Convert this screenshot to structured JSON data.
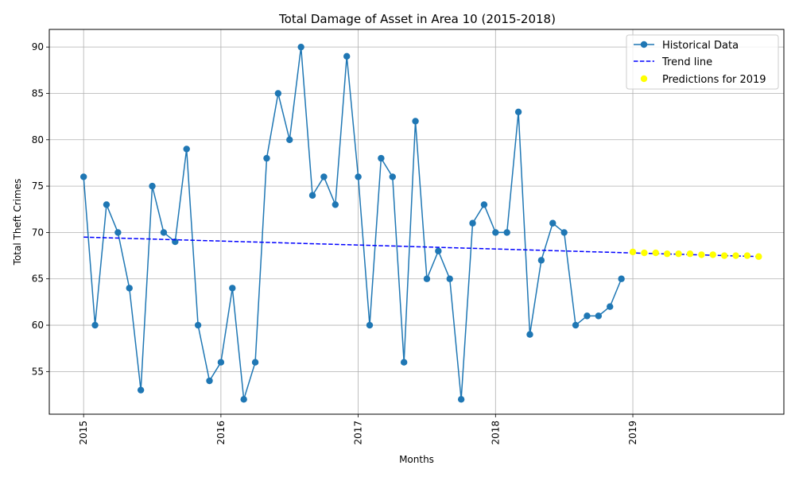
{
  "chart_data": {
    "type": "line",
    "title": "Total Damage of Asset in Area 10 (2015-2018)",
    "xlabel": "Months",
    "ylabel": "Total Theft Crimes",
    "xlim": [
      2014.75,
      2020.1
    ],
    "ylim": [
      50.4,
      91.9
    ],
    "xticks": [
      2015,
      2016,
      2017,
      2018,
      2019
    ],
    "yticks": [
      55,
      60,
      65,
      70,
      75,
      80,
      85,
      90
    ],
    "grid": true,
    "legend_position": "top-right",
    "colors": {
      "historical": "#1f77b4",
      "trend": "#0000ff",
      "prediction": "#ffff00"
    },
    "series": [
      {
        "name": "Historical Data",
        "style": "line-marker",
        "x": [
          "2015-01",
          "2015-02",
          "2015-03",
          "2015-04",
          "2015-05",
          "2015-06",
          "2015-07",
          "2015-08",
          "2015-09",
          "2015-10",
          "2015-11",
          "2015-12",
          "2016-01",
          "2016-02",
          "2016-03",
          "2016-04",
          "2016-05",
          "2016-06",
          "2016-07",
          "2016-08",
          "2016-09",
          "2016-10",
          "2016-11",
          "2016-12",
          "2017-01",
          "2017-02",
          "2017-03",
          "2017-04",
          "2017-05",
          "2017-06",
          "2017-07",
          "2017-08",
          "2017-09",
          "2017-10",
          "2017-11",
          "2017-12",
          "2018-01",
          "2018-02",
          "2018-03",
          "2018-04",
          "2018-05",
          "2018-06",
          "2018-07",
          "2018-08",
          "2018-09",
          "2018-10",
          "2018-11",
          "2018-12"
        ],
        "values": [
          76,
          60,
          73,
          70,
          64,
          53,
          75,
          70,
          69,
          79,
          60,
          54,
          56,
          64,
          52,
          56,
          78,
          85,
          80,
          90,
          74,
          76,
          73,
          89,
          76,
          60,
          78,
          76,
          56,
          82,
          65,
          68,
          65,
          52,
          71,
          73,
          70,
          70,
          83,
          59,
          67,
          71,
          70,
          60,
          61,
          61,
          62,
          65
        ]
      },
      {
        "name": "Trend line",
        "style": "dashed",
        "x": [
          "2015-01",
          "2019-12"
        ],
        "values": [
          69.5,
          67.4
        ]
      },
      {
        "name": "Predictions for 2019",
        "style": "scatter",
        "x": [
          "2019-01",
          "2019-02",
          "2019-03",
          "2019-04",
          "2019-05",
          "2019-06",
          "2019-07",
          "2019-08",
          "2019-09",
          "2019-10",
          "2019-11",
          "2019-12"
        ],
        "values": [
          67.9,
          67.8,
          67.8,
          67.7,
          67.7,
          67.7,
          67.6,
          67.6,
          67.5,
          67.5,
          67.5,
          67.4
        ]
      }
    ]
  }
}
